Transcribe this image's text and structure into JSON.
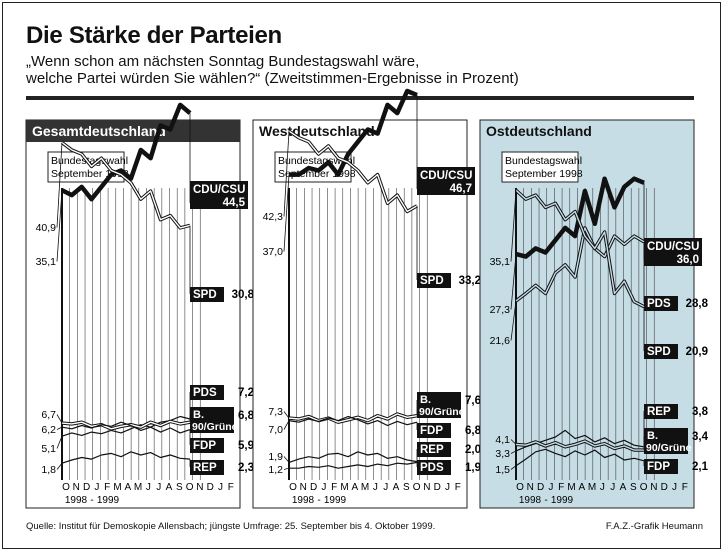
{
  "header": {
    "title": "Die Stärke der Parteien",
    "subtitle_line1": "„Wenn schon am nächsten Sonntag Bundestagswahl wäre,",
    "subtitle_line2": "welche Partei würden Sie wählen?“ (Zweitstimmen-Ergebnisse in Prozent)"
  },
  "footer": {
    "source": "Quelle: Institut für Demoskopie Allensbach; jüngste Umfrage: 25. September bis 4. Oktober 1999.",
    "credit": "F.A.Z.-Grafik Heumann"
  },
  "colors": {
    "panel_header_dark": "#333333",
    "ost_background": "#c6dde6",
    "ink": "#111111"
  },
  "chart_data": [
    {
      "type": "line",
      "title": "Gesamtdeutschland",
      "annotation": "Bundestagswahl September 1998",
      "x": [
        "Sep 98",
        "Okt 98",
        "Nov 98",
        "Dez 98",
        "Jan 99",
        "Feb 99",
        "Mär 99",
        "Apr 99",
        "Mai 99",
        "Jun 99",
        "Jul 99",
        "Aug 99",
        "Sep 99",
        "Okt 99"
      ],
      "x_tick_labels": [
        "O",
        "N",
        "D",
        "J",
        "F",
        "M",
        "A",
        "M",
        "J",
        "J",
        "A",
        "S",
        "O",
        "N",
        "D",
        "J",
        "F"
      ],
      "x_year_labels": [
        "1998",
        "1999"
      ],
      "ylim": [
        0,
        50
      ],
      "grid": true,
      "series": [
        {
          "name": "CDU/CSU",
          "style": "bold",
          "start_label": "35,1",
          "end_label": "44,5",
          "values": [
            35.1,
            34.5,
            35.5,
            34.0,
            35.5,
            37.0,
            37.5,
            36.5,
            40.0,
            39.0,
            43.0,
            42.5,
            45.5,
            44.5
          ]
        },
        {
          "name": "SPD",
          "style": "double",
          "start_label": "40,9",
          "end_label": "30,8",
          "values": [
            40.9,
            40.0,
            39.5,
            38.0,
            39.0,
            37.5,
            37.0,
            36.0,
            34.0,
            35.0,
            31.5,
            32.0,
            30.5,
            30.8
          ]
        },
        {
          "name": "PDS",
          "style": "thin",
          "start_label": "5,1",
          "end_label": "7,2",
          "values": [
            5.1,
            5.5,
            5.2,
            5.6,
            5.4,
            5.8,
            5.5,
            6.0,
            6.5,
            6.2,
            6.8,
            7.0,
            7.5,
            7.2
          ]
        },
        {
          "name": "B. 90/Grüne",
          "style": "double",
          "start_label": "6,7",
          "end_label": "6,8",
          "values": [
            6.7,
            6.6,
            6.8,
            6.3,
            6.5,
            6.0,
            6.3,
            6.5,
            6.2,
            6.8,
            6.4,
            6.9,
            6.6,
            6.8
          ]
        },
        {
          "name": "FDP",
          "style": "thin",
          "start_label": "6,2",
          "end_label": "5,9",
          "values": [
            6.2,
            6.0,
            6.4,
            6.1,
            6.5,
            6.3,
            6.8,
            6.4,
            5.8,
            6.2,
            5.6,
            6.1,
            5.5,
            5.9
          ]
        },
        {
          "name": "REP",
          "style": "thin",
          "start_label": "1,8",
          "end_label": "2,3",
          "values": [
            1.8,
            2.2,
            2.5,
            2.3,
            2.8,
            3.0,
            2.6,
            3.2,
            2.8,
            3.1,
            2.5,
            2.8,
            2.4,
            2.3
          ]
        }
      ]
    },
    {
      "type": "line",
      "title": "Westdeutschland",
      "annotation": "Bundestagswahl September 1998",
      "x": [
        "Sep 98",
        "Okt 98",
        "Nov 98",
        "Dez 98",
        "Jan 99",
        "Feb 99",
        "Mär 99",
        "Apr 99",
        "Mai 99",
        "Jun 99",
        "Jul 99",
        "Aug 99",
        "Sep 99",
        "Okt 99"
      ],
      "x_tick_labels": [
        "O",
        "N",
        "D",
        "J",
        "F",
        "M",
        "A",
        "M",
        "J",
        "J",
        "A",
        "S",
        "O",
        "N",
        "D",
        "J",
        "F"
      ],
      "x_year_labels": [
        "1998",
        "1999"
      ],
      "ylim": [
        0,
        50
      ],
      "grid": true,
      "series": [
        {
          "name": "CDU/CSU",
          "style": "bold",
          "start_label": "37,0",
          "end_label": "46,7",
          "values": [
            37.0,
            37.0,
            37.8,
            37.5,
            38.5,
            37.0,
            39.5,
            41.0,
            42.5,
            42.0,
            45.5,
            44.5,
            47.2,
            46.7
          ]
        },
        {
          "name": "SPD",
          "style": "double",
          "start_label": "42,3",
          "end_label": "33,2",
          "values": [
            42.3,
            41.5,
            41.0,
            39.5,
            40.5,
            39.0,
            38.5,
            37.5,
            36.0,
            37.0,
            33.5,
            34.5,
            32.5,
            33.2
          ]
        },
        {
          "name": "B. 90/Grüne",
          "style": "double",
          "start_label": "7,3",
          "end_label": "7,6",
          "values": [
            7.3,
            7.2,
            7.5,
            7.0,
            7.3,
            6.8,
            7.1,
            7.4,
            7.0,
            7.6,
            7.2,
            7.8,
            7.4,
            7.6
          ]
        },
        {
          "name": "FDP",
          "style": "thin",
          "start_label": "7,0",
          "end_label": "6,8",
          "values": [
            7.0,
            6.8,
            7.2,
            6.9,
            7.3,
            7.0,
            7.5,
            7.1,
            6.6,
            7.0,
            6.4,
            6.9,
            6.5,
            6.8
          ]
        },
        {
          "name": "REP",
          "style": "thin",
          "start_label": "1,9",
          "end_label": "2,0",
          "values": [
            1.9,
            2.3,
            2.6,
            2.4,
            2.9,
            3.0,
            2.6,
            3.2,
            2.8,
            3.0,
            2.4,
            2.6,
            2.2,
            2.0
          ]
        },
        {
          "name": "PDS",
          "style": "thin",
          "start_label": "1,2",
          "end_label": "1,9",
          "values": [
            1.2,
            1.2,
            1.4,
            1.3,
            1.5,
            1.2,
            1.4,
            1.6,
            1.4,
            1.7,
            1.5,
            1.8,
            1.7,
            1.9
          ]
        }
      ]
    },
    {
      "type": "line",
      "title": "Ostdeutschland",
      "annotation": "Bundestagswahl September 1998",
      "x": [
        "Sep 98",
        "Okt 98",
        "Nov 98",
        "Dez 98",
        "Jan 99",
        "Feb 99",
        "Mär 99",
        "Apr 99",
        "Mai 99",
        "Jun 99",
        "Jul 99",
        "Aug 99",
        "Sep 99",
        "Okt 99"
      ],
      "x_tick_labels": [
        "O",
        "N",
        "D",
        "J",
        "F",
        "M",
        "A",
        "M",
        "J",
        "J",
        "A",
        "S",
        "O",
        "N",
        "D",
        "J",
        "F"
      ],
      "x_year_labels": [
        "1998",
        "1999"
      ],
      "ylim": [
        0,
        50
      ],
      "grid": true,
      "series": [
        {
          "name": "CDU/CSU",
          "style": "bold",
          "start_label": "27,3",
          "end_label": "36,0",
          "values": [
            27.3,
            27.0,
            28.0,
            27.5,
            29.0,
            30.5,
            29.5,
            35.0,
            31.0,
            36.5,
            33.0,
            35.5,
            36.5,
            36.0
          ]
        },
        {
          "name": "PDS",
          "style": "double",
          "start_label": "21,6",
          "end_label": "28,8",
          "values": [
            21.6,
            22.5,
            23.5,
            22.5,
            25.0,
            26.0,
            24.5,
            30.5,
            28.0,
            27.0,
            29.5,
            28.5,
            29.5,
            28.8
          ]
        },
        {
          "name": "SPD",
          "style": "double",
          "start_label": "35,1",
          "end_label": "20,9",
          "values": [
            35.1,
            34.0,
            34.5,
            33.0,
            33.5,
            31.5,
            32.5,
            29.5,
            28.0,
            30.0,
            22.5,
            24.0,
            21.5,
            20.9
          ]
        },
        {
          "name": "REP",
          "style": "thin",
          "start_label": "3,3",
          "end_label": "3,8",
          "values": [
            3.3,
            3.8,
            4.2,
            4.6,
            5.0,
            5.8,
            4.8,
            5.2,
            4.4,
            4.9,
            4.2,
            4.6,
            4.0,
            3.8
          ]
        },
        {
          "name": "B. 90/Grüne",
          "style": "double",
          "start_label": "4,1",
          "end_label": "3,4",
          "values": [
            4.1,
            4.0,
            4.4,
            3.9,
            4.3,
            3.8,
            4.1,
            4.5,
            3.9,
            4.2,
            3.6,
            3.9,
            3.4,
            3.4
          ]
        },
        {
          "name": "FDP",
          "style": "thin",
          "start_label": "1,5",
          "end_label": "2,1",
          "values": [
            1.5,
            2.3,
            3.2,
            3.5,
            3.0,
            2.6,
            3.3,
            2.8,
            3.4,
            2.5,
            2.9,
            2.2,
            2.4,
            2.1
          ]
        }
      ]
    }
  ]
}
